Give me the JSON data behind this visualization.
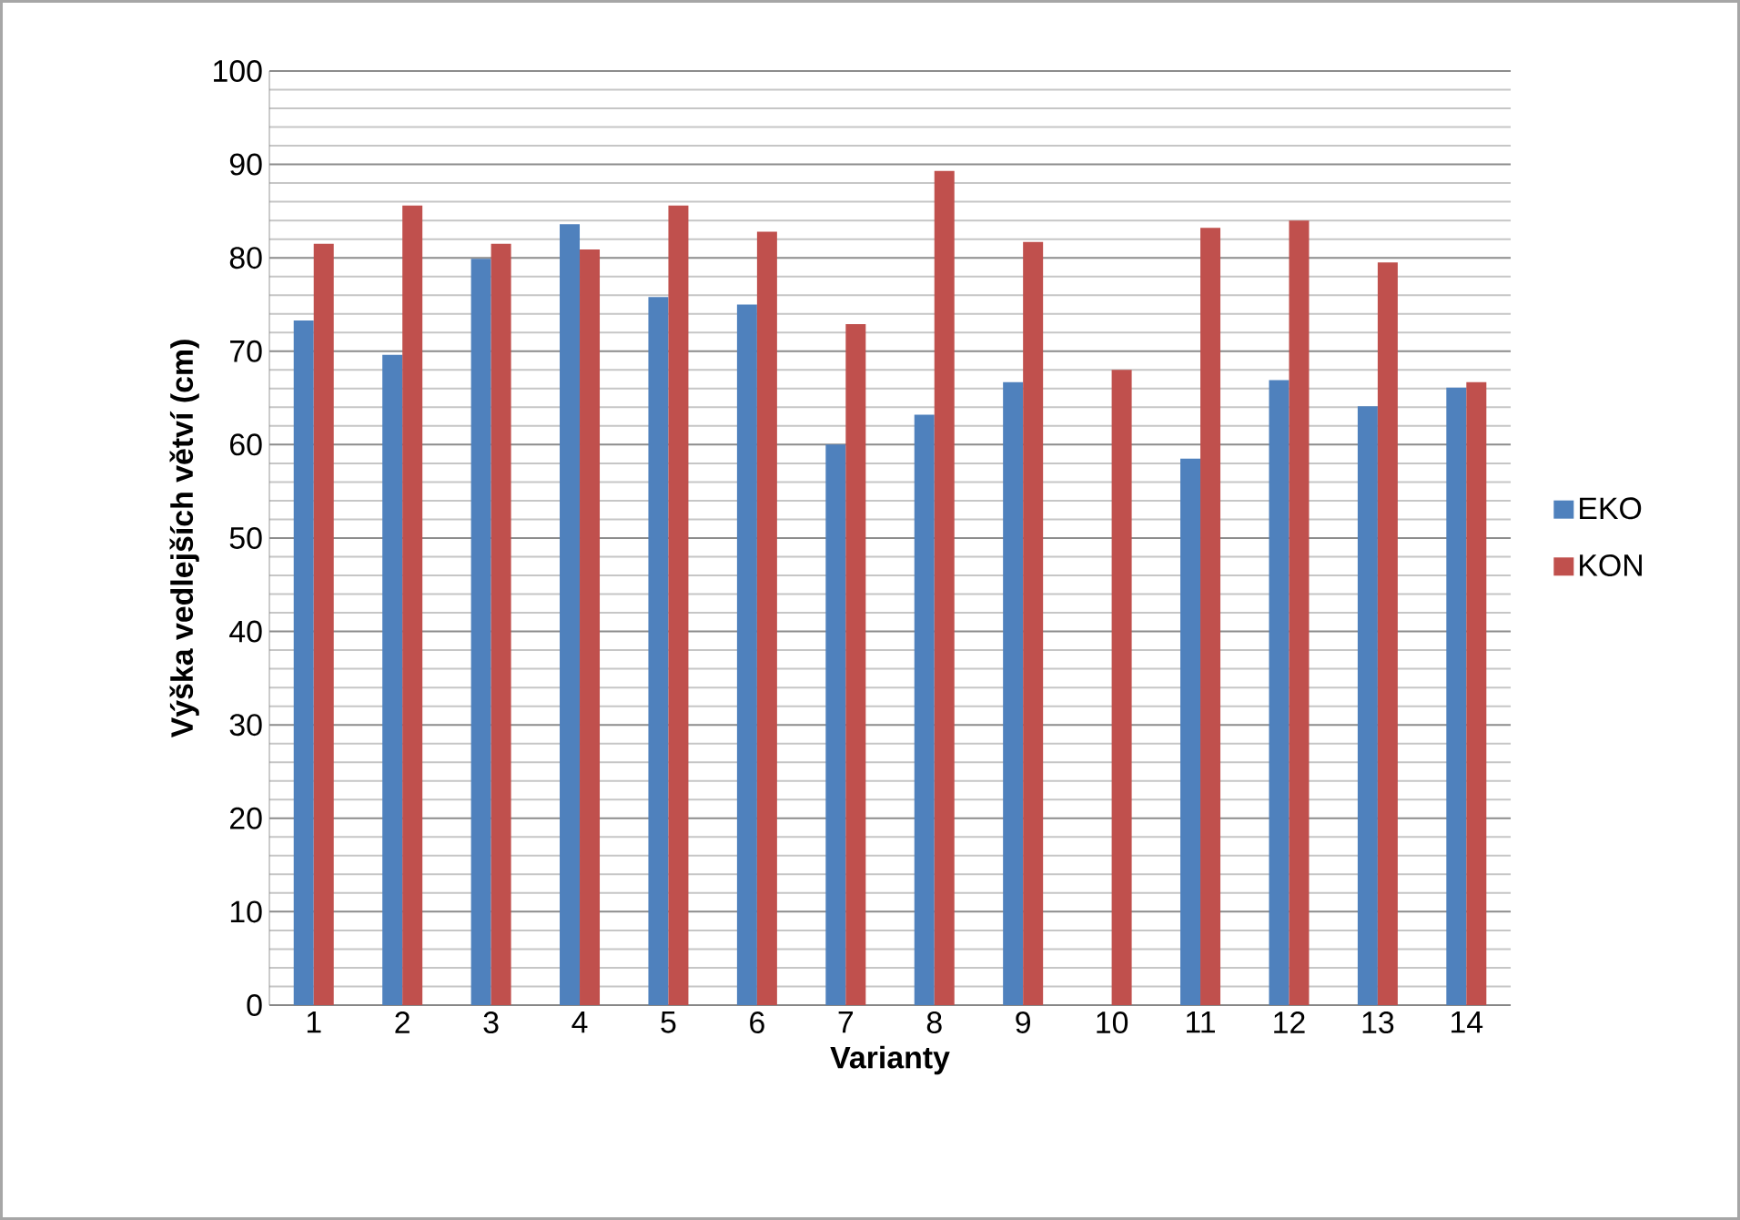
{
  "chart_data": {
    "type": "bar",
    "xlabel": "Varianty",
    "ylabel": "Výška vedlejších větví (cm)",
    "categories": [
      "1",
      "2",
      "3",
      "4",
      "5",
      "6",
      "7",
      "8",
      "9",
      "10",
      "11",
      "12",
      "13",
      "14"
    ],
    "series": [
      {
        "name": "EKO",
        "color": "#4f81bd",
        "values": [
          73.3,
          69.6,
          79.9,
          83.6,
          75.8,
          75.0,
          60.0,
          63.2,
          66.7,
          null,
          58.5,
          66.9,
          64.1,
          66.1
        ]
      },
      {
        "name": "KON",
        "color": "#c0504d",
        "values": [
          81.5,
          85.6,
          81.5,
          80.9,
          85.6,
          82.8,
          72.9,
          89.3,
          81.7,
          68.0,
          83.2,
          84.0,
          79.5,
          66.7
        ]
      }
    ],
    "ylim": [
      0,
      100
    ],
    "yticks": [
      0,
      10,
      20,
      30,
      40,
      50,
      60,
      70,
      80,
      90,
      100
    ],
    "grid": "y",
    "legend": "right"
  }
}
